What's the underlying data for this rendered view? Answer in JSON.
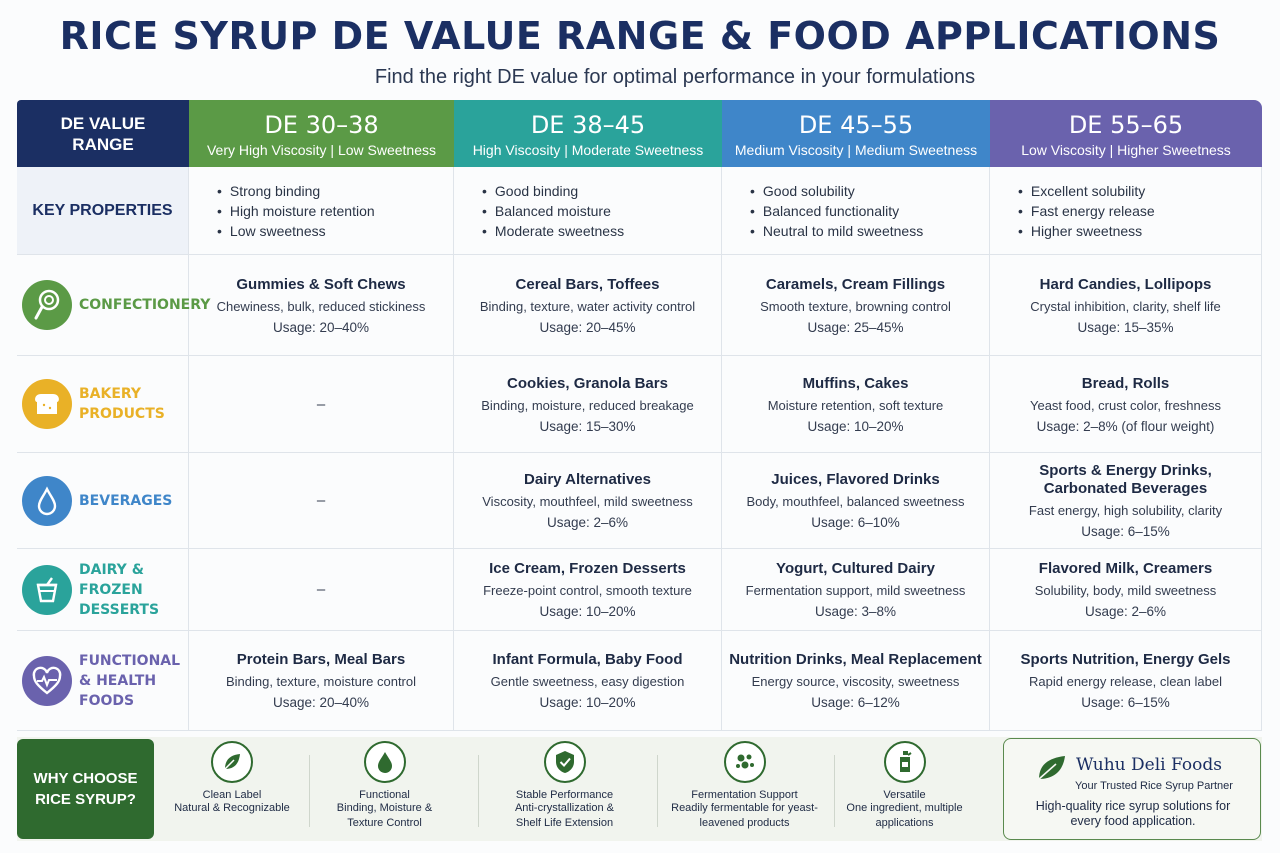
{
  "title": "RICE SYRUP DE VALUE RANGE & FOOD APPLICATIONS",
  "subtitle": "Find the right DE value for optimal performance in your formulations",
  "colors": {
    "navy": "#1b2f63",
    "de_30_38": "#5b9a46",
    "de_38_45": "#2aa39b",
    "de_45_55": "#3f86c9",
    "de_55_65": "#6a62ad",
    "footer_green": "#2f6a2f"
  },
  "header": {
    "corner": "DE VALUE RANGE",
    "columns": [
      {
        "range": "DE 30–38",
        "desc": "Very High Viscosity | Low Sweetness"
      },
      {
        "range": "DE 38–45",
        "desc": "High Viscosity | Moderate Sweetness"
      },
      {
        "range": "DE 45–55",
        "desc": "Medium Viscosity | Medium Sweetness"
      },
      {
        "range": "DE 55–65",
        "desc": "Low Viscosity | Higher Sweetness"
      }
    ]
  },
  "key_properties": {
    "label": "KEY PROPERTIES",
    "columns": [
      [
        "Strong binding",
        "High moisture retention",
        "Low sweetness"
      ],
      [
        "Good binding",
        "Balanced moisture",
        "Moderate sweetness"
      ],
      [
        "Good solubility",
        "Balanced functionality",
        "Neutral to mild sweetness"
      ],
      [
        "Excellent solubility",
        "Fast energy release",
        "Higher sweetness"
      ]
    ]
  },
  "categories": [
    {
      "label": "CONFECTIONERY",
      "icon": "lollipop-icon",
      "color": "#5b9a46",
      "cells": [
        {
          "name": "Gummies & Soft Chews",
          "desc": "Chewiness, bulk, reduced stickiness",
          "usage": "Usage: 20–40%"
        },
        {
          "name": "Cereal Bars, Toffees",
          "desc": "Binding, texture, water activity control",
          "usage": "Usage: 20–45%"
        },
        {
          "name": "Caramels, Cream Fillings",
          "desc": "Smooth texture, browning control",
          "usage": "Usage: 25–45%"
        },
        {
          "name": "Hard Candies, Lollipops",
          "desc": "Crystal inhibition, clarity, shelf life",
          "usage": "Usage: 15–35%"
        }
      ]
    },
    {
      "label": "BAKERY PRODUCTS",
      "icon": "bread-icon",
      "color": "#e9b127",
      "cells": [
        {
          "dash": "–"
        },
        {
          "name": "Cookies, Granola Bars",
          "desc": "Binding, moisture, reduced breakage",
          "usage": "Usage: 15–30%"
        },
        {
          "name": "Muffins, Cakes",
          "desc": "Moisture retention, soft texture",
          "usage": "Usage: 10–20%"
        },
        {
          "name": "Bread, Rolls",
          "desc": "Yeast food, crust color, freshness",
          "usage": "Usage: 2–8% (of flour weight)"
        }
      ]
    },
    {
      "label": "BEVERAGES",
      "icon": "droplet-icon",
      "color": "#3f86c9",
      "cells": [
        {
          "dash": "–"
        },
        {
          "name": "Dairy Alternatives",
          "desc": "Viscosity, mouthfeel, mild sweetness",
          "usage": "Usage: 2–6%"
        },
        {
          "name": "Juices, Flavored Drinks",
          "desc": "Body, mouthfeel, balanced sweetness",
          "usage": "Usage: 6–10%"
        },
        {
          "name": "Sports & Energy Drinks, Carbonated Beverages",
          "desc": "Fast energy, high solubility, clarity",
          "usage": "Usage: 6–15%"
        }
      ]
    },
    {
      "label": "DAIRY & FROZEN DESSERTS",
      "icon": "yogurt-cup-icon",
      "color": "#2aa39b",
      "cells": [
        {
          "dash": "–"
        },
        {
          "name": "Ice Cream, Frozen Desserts",
          "desc": "Freeze-point control, smooth texture",
          "usage": "Usage: 10–20%"
        },
        {
          "name": "Yogurt, Cultured Dairy",
          "desc": "Fermentation support, mild sweetness",
          "usage": "Usage: 3–8%"
        },
        {
          "name": "Flavored Milk, Creamers",
          "desc": "Solubility, body, mild sweetness",
          "usage": "Usage: 2–6%"
        }
      ]
    },
    {
      "label": "FUNCTIONAL & HEALTH FOODS",
      "icon": "heart-pulse-icon",
      "color": "#6a62ad",
      "cells": [
        {
          "name": "Protein Bars, Meal Bars",
          "desc": "Binding, texture, moisture control",
          "usage": "Usage: 20–40%"
        },
        {
          "name": "Infant Formula, Baby Food",
          "desc": "Gentle sweetness, easy digestion",
          "usage": "Usage: 10–20%"
        },
        {
          "name": "Nutrition Drinks, Meal Replacement",
          "desc": "Energy source, viscosity, sweetness",
          "usage": "Usage: 6–12%"
        },
        {
          "name": "Sports Nutrition, Energy Gels",
          "desc": "Rapid energy release, clean label",
          "usage": "Usage: 6–15%"
        }
      ]
    }
  ],
  "footer": {
    "why": "WHY CHOOSE RICE SYRUP?",
    "features": [
      {
        "icon": "leaf-icon",
        "title": "Clean Label",
        "desc": "Natural & Recognizable"
      },
      {
        "icon": "droplet-icon",
        "title": "Functional",
        "desc": "Binding, Moisture & Texture Control"
      },
      {
        "icon": "shield-check-icon",
        "title": "Stable Performance",
        "desc": "Anti-crystallization & Shelf Life Extension"
      },
      {
        "icon": "yeast-icon",
        "title": "Fermentation Support",
        "desc": "Readily fermentable for yeast-leavened products"
      },
      {
        "icon": "bottle-icon",
        "title": "Versatile",
        "desc": "One ingredient, multiple applications"
      }
    ],
    "brand": {
      "name": "Wuhu Deli Foods",
      "tagline": "Your Trusted Rice Syrup Partner",
      "desc": "High-quality rice syrup solutions for every food application."
    }
  }
}
